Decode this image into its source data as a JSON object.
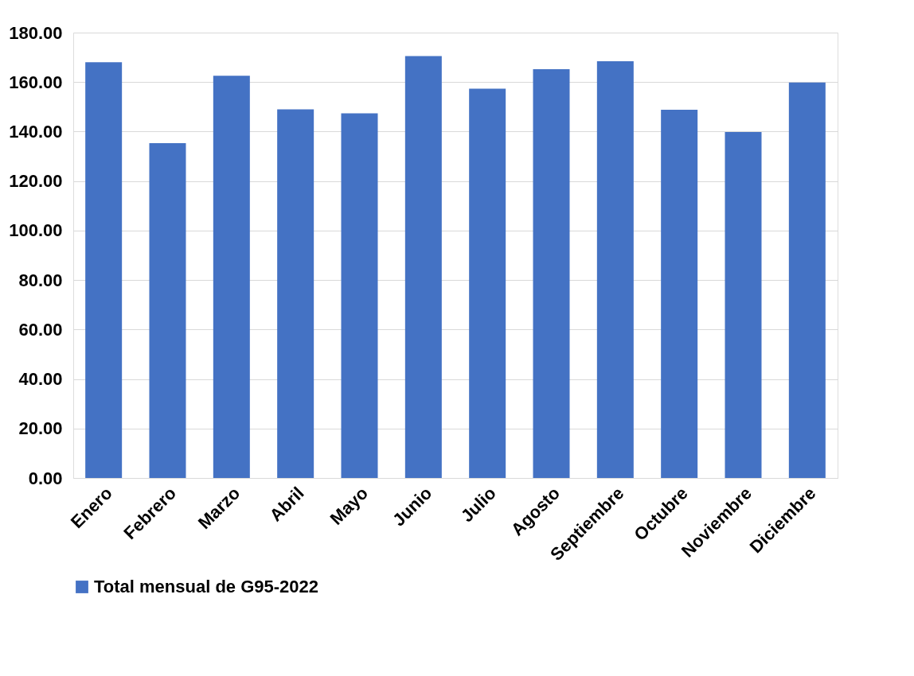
{
  "chart_data": {
    "type": "bar",
    "categories": [
      "Enero",
      "Febrero",
      "Marzo",
      "Abril",
      "Mayo",
      "Junio",
      "Julio",
      "Agosto",
      "Septiembre",
      "Octubre",
      "Noviembre",
      "Diciembre"
    ],
    "series": [
      {
        "name": "Total mensual de G95-2022",
        "color": "#4472c4",
        "values": [
          168.0,
          135.3,
          162.6,
          149.0,
          147.4,
          170.5,
          157.3,
          165.2,
          168.4,
          148.8,
          139.8,
          159.8
        ]
      }
    ],
    "ylim": [
      0,
      180
    ],
    "yticks": [
      {
        "value": 0,
        "label": "0.00"
      },
      {
        "value": 20,
        "label": "20.00"
      },
      {
        "value": 40,
        "label": "40.00"
      },
      {
        "value": 60,
        "label": "60.00"
      },
      {
        "value": 80,
        "label": "80.00"
      },
      {
        "value": 100,
        "label": "100.00"
      },
      {
        "value": 120,
        "label": "120.00"
      },
      {
        "value": 140,
        "label": "140.00"
      },
      {
        "value": 160,
        "label": "160.00"
      },
      {
        "value": 180,
        "label": "180.00"
      }
    ],
    "grid": "y",
    "legend": "bottom"
  }
}
